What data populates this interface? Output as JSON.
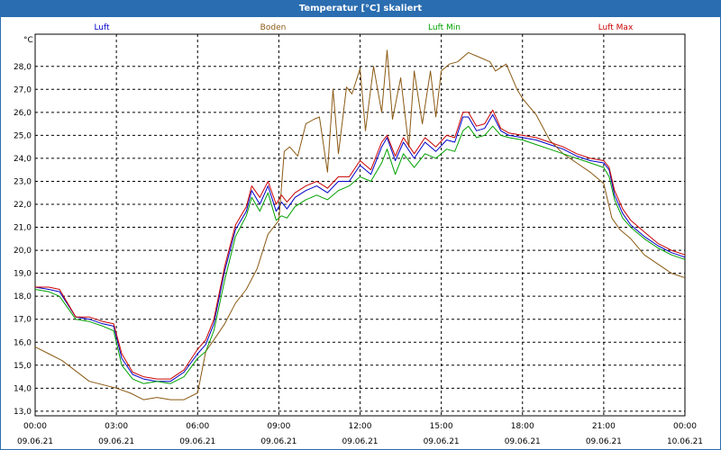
{
  "window": {
    "title": "Temperatur [°C] skaliert"
  },
  "chart_data": {
    "type": "line",
    "title": "Temperatur [°C] skaliert",
    "ylabel": "°C",
    "xlabel": "",
    "ylim": [
      12.8,
      29.4
    ],
    "xlim": [
      0,
      24
    ],
    "grid": true,
    "legend_position": "top",
    "y_ticks": [
      "13,0",
      "14,0",
      "15,0",
      "16,0",
      "17,0",
      "18,0",
      "19,0",
      "20,0",
      "21,0",
      "22,0",
      "23,0",
      "24,0",
      "25,0",
      "26,0",
      "27,0",
      "28,0"
    ],
    "x_ticks": [
      {
        "time": "00:00",
        "date": "09.06.21"
      },
      {
        "time": "03:00",
        "date": "09.06.21"
      },
      {
        "time": "06:00",
        "date": "09.06.21"
      },
      {
        "time": "09:00",
        "date": "09.06.21"
      },
      {
        "time": "12:00",
        "date": "09.06.21"
      },
      {
        "time": "15:00",
        "date": "09.06.21"
      },
      {
        "time": "18:00",
        "date": "09.06.21"
      },
      {
        "time": "21:00",
        "date": "09.06.21"
      },
      {
        "time": "00:00",
        "date": "10.06.21"
      }
    ],
    "series": [
      {
        "name": "Luft",
        "color": "#0000c8",
        "x": [
          0,
          0.5,
          0.9,
          1.5,
          2.0,
          2.5,
          2.9,
          3.2,
          3.6,
          4.0,
          4.5,
          5.0,
          5.5,
          6.0,
          6.3,
          6.6,
          7.0,
          7.4,
          7.8,
          8.0,
          8.3,
          8.6,
          8.9,
          9.1,
          9.3,
          9.6,
          10.0,
          10.4,
          10.8,
          11.2,
          11.6,
          12.0,
          12.4,
          12.8,
          13.0,
          13.3,
          13.6,
          14.0,
          14.4,
          14.8,
          15.2,
          15.5,
          15.8,
          16.0,
          16.3,
          16.6,
          16.9,
          17.2,
          17.5,
          18.0,
          18.5,
          19.0,
          19.5,
          20.0,
          20.5,
          21.0,
          21.2,
          21.4,
          21.7,
          22.0,
          22.5,
          23.0,
          23.5,
          24.0
        ],
        "y": [
          18.4,
          18.3,
          18.2,
          17.1,
          17.0,
          16.8,
          16.7,
          15.3,
          14.6,
          14.4,
          14.3,
          14.3,
          14.7,
          15.5,
          15.9,
          16.8,
          19.1,
          20.9,
          21.7,
          22.6,
          22.0,
          22.8,
          21.7,
          22.1,
          21.8,
          22.3,
          22.6,
          22.8,
          22.5,
          23.0,
          23.0,
          23.7,
          23.3,
          24.5,
          24.9,
          23.9,
          24.7,
          24.0,
          24.7,
          24.3,
          24.8,
          24.7,
          25.8,
          25.8,
          25.2,
          25.3,
          25.9,
          25.2,
          25.0,
          24.9,
          24.8,
          24.6,
          24.4,
          24.1,
          23.9,
          23.8,
          23.5,
          22.4,
          21.6,
          21.1,
          20.6,
          20.2,
          19.9,
          19.7
        ]
      },
      {
        "name": "Boden",
        "color": "#8b5a14",
        "x": [
          0,
          0.5,
          1.0,
          2.0,
          3.0,
          3.5,
          4.0,
          4.5,
          5.0,
          5.5,
          6.0,
          6.3,
          6.6,
          7.0,
          7.4,
          7.8,
          8.2,
          8.6,
          9.0,
          9.2,
          9.4,
          9.7,
          10.0,
          10.3,
          10.5,
          10.8,
          11.0,
          11.2,
          11.5,
          11.7,
          12.0,
          12.2,
          12.5,
          12.8,
          13.0,
          13.2,
          13.5,
          13.8,
          14.0,
          14.3,
          14.6,
          14.8,
          15.0,
          15.3,
          15.6,
          16.0,
          16.4,
          16.8,
          17.0,
          17.4,
          17.8,
          18.0,
          18.5,
          19.0,
          19.5,
          20.0,
          20.5,
          21.0,
          21.3,
          21.6,
          22.0,
          22.5,
          23.0,
          23.5,
          24.0
        ],
        "y": [
          15.8,
          15.5,
          15.2,
          14.3,
          14.0,
          13.8,
          13.5,
          13.6,
          13.5,
          13.5,
          13.8,
          15.6,
          16.1,
          16.8,
          17.7,
          18.3,
          19.2,
          20.7,
          21.3,
          24.3,
          24.5,
          24.1,
          25.5,
          25.7,
          25.8,
          23.4,
          27.0,
          24.2,
          27.1,
          26.8,
          27.9,
          25.2,
          28.0,
          26.0,
          28.7,
          25.7,
          27.5,
          24.5,
          27.8,
          25.5,
          27.8,
          25.8,
          27.8,
          28.1,
          28.2,
          28.6,
          28.4,
          28.2,
          27.8,
          28.1,
          27.0,
          26.6,
          25.9,
          24.8,
          24.2,
          23.8,
          23.4,
          22.9,
          21.4,
          20.9,
          20.5,
          19.8,
          19.4,
          19.0,
          18.8
        ]
      },
      {
        "name": "Luft Min",
        "color": "#00a000",
        "x": [
          0,
          0.5,
          0.9,
          1.5,
          2.0,
          2.5,
          2.9,
          3.2,
          3.6,
          4.0,
          4.5,
          5.0,
          5.5,
          6.0,
          6.3,
          6.6,
          7.0,
          7.4,
          7.8,
          8.0,
          8.3,
          8.6,
          8.9,
          9.1,
          9.3,
          9.6,
          10.0,
          10.4,
          10.8,
          11.2,
          11.6,
          12.0,
          12.4,
          12.8,
          13.0,
          13.3,
          13.6,
          14.0,
          14.4,
          14.8,
          15.2,
          15.5,
          15.8,
          16.0,
          16.3,
          16.6,
          16.9,
          17.2,
          17.5,
          18.0,
          18.5,
          19.0,
          19.5,
          20.0,
          20.5,
          21.0,
          21.2,
          21.4,
          21.7,
          22.0,
          22.5,
          23.0,
          23.5,
          24.0
        ],
        "y": [
          18.3,
          18.2,
          18.0,
          17.0,
          16.9,
          16.7,
          16.5,
          15.0,
          14.4,
          14.2,
          14.3,
          14.2,
          14.5,
          15.3,
          15.6,
          16.5,
          18.7,
          20.6,
          21.5,
          22.3,
          21.7,
          22.5,
          21.3,
          21.5,
          21.4,
          21.9,
          22.2,
          22.4,
          22.2,
          22.6,
          22.8,
          23.2,
          23.0,
          23.8,
          24.4,
          23.3,
          24.2,
          23.6,
          24.2,
          24.0,
          24.4,
          24.3,
          25.2,
          25.4,
          24.9,
          25.0,
          25.4,
          25.0,
          24.9,
          24.8,
          24.6,
          24.4,
          24.2,
          24.0,
          23.8,
          23.6,
          23.2,
          22.2,
          21.4,
          21.0,
          20.5,
          20.1,
          19.8,
          19.6
        ]
      },
      {
        "name": "Luft Max",
        "color": "#c80000",
        "x": [
          0,
          0.5,
          0.9,
          1.5,
          2.0,
          2.5,
          2.9,
          3.2,
          3.6,
          4.0,
          4.5,
          5.0,
          5.5,
          6.0,
          6.3,
          6.6,
          7.0,
          7.4,
          7.8,
          8.0,
          8.3,
          8.6,
          8.9,
          9.1,
          9.3,
          9.6,
          10.0,
          10.4,
          10.8,
          11.2,
          11.6,
          12.0,
          12.4,
          12.8,
          13.0,
          13.3,
          13.6,
          14.0,
          14.4,
          14.8,
          15.2,
          15.5,
          15.8,
          16.0,
          16.3,
          16.6,
          16.9,
          17.2,
          17.5,
          18.0,
          18.5,
          19.0,
          19.5,
          20.0,
          20.5,
          21.0,
          21.2,
          21.4,
          21.7,
          22.0,
          22.5,
          23.0,
          23.5,
          24.0
        ],
        "y": [
          18.4,
          18.4,
          18.3,
          17.1,
          17.1,
          16.9,
          16.8,
          15.5,
          14.7,
          14.5,
          14.4,
          14.4,
          14.8,
          15.7,
          16.1,
          17.0,
          19.3,
          21.1,
          21.9,
          22.8,
          22.3,
          23.0,
          22.0,
          22.4,
          22.1,
          22.5,
          22.8,
          23.0,
          22.7,
          23.2,
          23.2,
          23.9,
          23.5,
          24.7,
          25.0,
          24.1,
          24.9,
          24.2,
          24.9,
          24.5,
          25.0,
          24.9,
          26.0,
          26.0,
          25.4,
          25.5,
          26.1,
          25.3,
          25.1,
          25.0,
          24.9,
          24.7,
          24.5,
          24.2,
          24.0,
          23.9,
          23.6,
          22.6,
          21.8,
          21.3,
          20.8,
          20.3,
          20.0,
          19.8
        ]
      }
    ]
  }
}
